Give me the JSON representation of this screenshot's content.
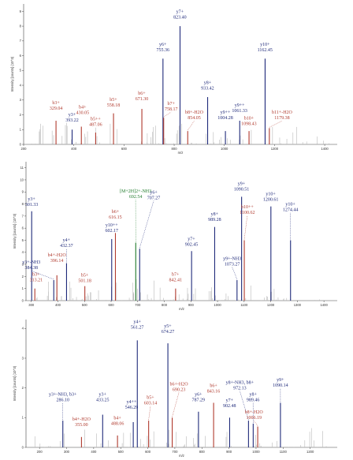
{
  "colors": {
    "b": "#b03a2e",
    "y": "#1f2a7a",
    "g": "#1e7a2a",
    "noise": "#b9b9b9",
    "axis": "#444444"
  },
  "chart_data": [
    {
      "type": "bar",
      "xlabel": "m/z",
      "ylabel": "Intensity [counts] (10^3)",
      "xlim": [
        200,
        1450
      ],
      "ylim": [
        0,
        9.5
      ],
      "xticks": [
        "200",
        "400",
        "600",
        "800",
        "1000",
        "1200",
        "1400"
      ],
      "yticks": [
        "0",
        "1",
        "2",
        "3",
        "4",
        "5",
        "6",
        "7",
        "8",
        "9"
      ],
      "peaks": [
        {
          "mz": 329.04,
          "h": 1.6,
          "c": "b",
          "label": "b3+",
          "value": "329.04",
          "lx": 329,
          "ly": 2.35
        },
        {
          "mz": 393.22,
          "h": 1.0,
          "c": "y",
          "label": "y3+",
          "value": "393.22",
          "lx": 393,
          "ly": 1.55
        },
        {
          "mz": 430.05,
          "h": 1.2,
          "c": "b",
          "label": "b4+",
          "value": "430.05",
          "lx": 435,
          "ly": 2.05
        },
        {
          "mz": 487.06,
          "h": 0.8,
          "c": "b",
          "label": "b5++",
          "value": "487.06",
          "lx": 487,
          "ly": 1.25
        },
        {
          "mz": 558.18,
          "h": 2.1,
          "c": "b",
          "label": "b5+",
          "value": "558.18",
          "lx": 558,
          "ly": 2.55
        },
        {
          "mz": 671.3,
          "h": 2.4,
          "c": "b",
          "label": "b6+",
          "value": "671.30",
          "lx": 671,
          "ly": 3.0
        },
        {
          "mz": 755.36,
          "h": 5.8,
          "c": "y",
          "label": "y6+",
          "value": "755.36",
          "lx": 755,
          "ly": 6.3
        },
        {
          "mz": 758.17,
          "h": 1.8,
          "c": "b",
          "label": "b7+",
          "value": "758.17",
          "lx": 788,
          "ly": 2.3
        },
        {
          "mz": 823.4,
          "h": 8.0,
          "c": "y",
          "label": "y7+",
          "value": "823.40",
          "lx": 823,
          "ly": 8.5
        },
        {
          "mz": 854.05,
          "h": 0.9,
          "c": "b",
          "label": "b8+-H2O",
          "value": "854.05",
          "lx": 880,
          "ly": 1.7
        },
        {
          "mz": 933.42,
          "h": 3.2,
          "c": "y",
          "label": "y8+",
          "value": "933.42",
          "lx": 933,
          "ly": 3.7
        },
        {
          "mz": 1004.28,
          "h": 0.9,
          "c": "y",
          "label": "y9++",
          "value": "1004.28",
          "lx": 1004,
          "ly": 1.7
        },
        {
          "mz": 1061.33,
          "h": 1.6,
          "c": "y",
          "label": "y9++",
          "value": "1061.33",
          "lx": 1061,
          "ly": 2.2
        },
        {
          "mz": 1098.43,
          "h": 0.9,
          "c": "b",
          "label": "b10+",
          "value": "1098.43",
          "lx": 1098,
          "ly": 1.3
        },
        {
          "mz": 1162.45,
          "h": 5.8,
          "c": "y",
          "label": "y10+",
          "value": "1162.45",
          "lx": 1162,
          "ly": 6.3
        },
        {
          "mz": 1179.38,
          "h": 1.1,
          "c": "b",
          "label": "b11+-H2O",
          "value": "1179.38",
          "lx": 1230,
          "ly": 1.7
        }
      ]
    },
    {
      "type": "bar",
      "xlabel": "m/z",
      "ylabel": "Intensity [counts] (10^3)",
      "xlim": [
        280,
        1450
      ],
      "ylim": [
        0,
        11.5
      ],
      "xticks": [
        "300",
        "400",
        "500",
        "600",
        "700",
        "800",
        "900",
        "1000",
        "1100",
        "1200",
        "1300",
        "1400"
      ],
      "yticks": [
        "0",
        "1",
        "2",
        "3",
        "4",
        "5",
        "6",
        "7",
        "8",
        "9",
        "10",
        "11"
      ],
      "peaks": [
        {
          "mz": 301.33,
          "h": 7.4,
          "c": "y",
          "label": "y3+",
          "value": "301.33",
          "lx": 301,
          "ly": 7.85
        },
        {
          "mz": 313.21,
          "h": 1.0,
          "c": "b",
          "label": "b3+",
          "value": "313.21",
          "lx": 318,
          "ly": 1.6
        },
        {
          "mz": 384.38,
          "h": 1.7,
          "c": "y",
          "label": "y3+-NH3",
          "value": "384.38",
          "lx": 300,
          "ly": 2.6
        },
        {
          "mz": 396.14,
          "h": 2.1,
          "c": "b",
          "label": "b4+-H2O",
          "value": "396.14",
          "lx": 396,
          "ly": 3.2
        },
        {
          "mz": 432.37,
          "h": 3.1,
          "c": "y",
          "label": "y4+",
          "value": "432.37",
          "lx": 432,
          "ly": 4.45
        },
        {
          "mz": 501.18,
          "h": 1.2,
          "c": "b",
          "label": "b5+",
          "value": "501.18",
          "lx": 501,
          "ly": 1.55
        },
        {
          "mz": 602.17,
          "h": 5.1,
          "c": "y",
          "label": "y10++",
          "value": "602.17",
          "lx": 602,
          "ly": 5.7
        },
        {
          "mz": 616.15,
          "h": 5.6,
          "c": "b",
          "label": "b6+",
          "value": "616.15",
          "lx": 616,
          "ly": 6.8
        },
        {
          "mz": 692.54,
          "h": 4.8,
          "c": "g",
          "label": "[M+2H]2+-NH3",
          "value": "692.54",
          "lx": 692,
          "ly": 8.5
        },
        {
          "mz": 707.27,
          "h": 4.3,
          "c": "y",
          "label": "y6+",
          "value": "707.27",
          "lx": 760,
          "ly": 8.4
        },
        {
          "mz": 842.41,
          "h": 1.0,
          "c": "b",
          "label": "b7+",
          "value": "842.41",
          "lx": 842,
          "ly": 1.6
        },
        {
          "mz": 902.45,
          "h": 4.1,
          "c": "y",
          "label": "y7+",
          "value": "902.45",
          "lx": 902,
          "ly": 4.55
        },
        {
          "mz": 989.28,
          "h": 6.1,
          "c": "y",
          "label": "y8+",
          "value": "989.28",
          "lx": 989,
          "ly": 6.6
        },
        {
          "mz": 1073.27,
          "h": 1.7,
          "c": "y",
          "label": "y9+-NH3",
          "value": "1073.27",
          "lx": 1055,
          "ly": 2.9
        },
        {
          "mz": 1090.51,
          "h": 8.6,
          "c": "y",
          "label": "y9+",
          "value": "1090.51",
          "lx": 1090,
          "ly": 9.1
        },
        {
          "mz": 1100.62,
          "h": 5.0,
          "c": "b",
          "label": "b10++",
          "value": "1100.62",
          "lx": 1112,
          "ly": 7.2
        },
        {
          "mz": 1200.61,
          "h": 7.8,
          "c": "y",
          "label": "y10+",
          "value": "1200.61",
          "lx": 1200,
          "ly": 8.25
        },
        {
          "mz": 1274.44,
          "h": 5.0,
          "c": "y",
          "label": "y10+",
          "value": "1274.44",
          "lx": 1274,
          "ly": 7.4
        }
      ]
    },
    {
      "type": "bar",
      "xlabel": "m/z",
      "ylabel": "Intensity [counts] (10^3)",
      "xlim": [
        150,
        1300
      ],
      "ylim": [
        0,
        4.3
      ],
      "xticks": [
        "200",
        "300",
        "400",
        "500",
        "600",
        "700",
        "800",
        "900",
        "1000",
        "1100",
        "1200"
      ],
      "yticks": [
        "0",
        "1",
        "2",
        "3",
        "4"
      ],
      "peaks": [
        {
          "mz": 286.1,
          "h": 0.9,
          "c": "y",
          "label": "y3+-NH3, b3+",
          "value": "286.10",
          "lx": 286,
          "ly": 1.55
        },
        {
          "mz": 355.0,
          "h": 0.35,
          "c": "b",
          "label": "b4+-H2O",
          "value": "355.00",
          "lx": 355,
          "ly": 0.72
        },
        {
          "mz": 433.25,
          "h": 1.1,
          "c": "y",
          "label": "y3+",
          "value": "433.25",
          "lx": 433,
          "ly": 1.55
        },
        {
          "mz": 488.06,
          "h": 0.4,
          "c": "b",
          "label": "b4+",
          "value": "488.06",
          "lx": 488,
          "ly": 0.75
        },
        {
          "mz": 546.29,
          "h": 0.85,
          "c": "y",
          "label": "y4++",
          "value": "546.29",
          "lx": 540,
          "ly": 1.3
        },
        {
          "mz": 561.27,
          "h": 3.6,
          "c": "y",
          "label": "y4+",
          "value": "561.27",
          "lx": 561,
          "ly": 4.0
        },
        {
          "mz": 603.14,
          "h": 0.9,
          "c": "b",
          "label": "b5+",
          "value": "603.14",
          "lx": 610,
          "ly": 1.45
        },
        {
          "mz": 674.27,
          "h": 3.5,
          "c": "y",
          "label": "y5+",
          "value": "674.27",
          "lx": 674,
          "ly": 3.85
        },
        {
          "mz": 690.23,
          "h": 1.0,
          "c": "b",
          "label": "b6+-H2O",
          "value": "690.23",
          "lx": 715,
          "ly": 1.9
        },
        {
          "mz": 787.29,
          "h": 1.2,
          "c": "y",
          "label": "y6+",
          "value": "787.29",
          "lx": 787,
          "ly": 1.55
        },
        {
          "mz": 843.16,
          "h": 1.5,
          "c": "b",
          "label": "b6+",
          "value": "843.16",
          "lx": 843,
          "ly": 1.85
        },
        {
          "mz": 902.48,
          "h": 1.0,
          "c": "y",
          "label": "y7+",
          "value": "902.48",
          "lx": 902,
          "ly": 1.35
        },
        {
          "mz": 972.13,
          "h": 0.9,
          "c": "y",
          "label": "y8+-NH3, b8+",
          "value": "972.13",
          "lx": 940,
          "ly": 1.95
        },
        {
          "mz": 989.46,
          "h": 0.8,
          "c": "y",
          "label": "y8+",
          "value": "989.46",
          "lx": 989,
          "ly": 1.55
        },
        {
          "mz": 1006.19,
          "h": 0.7,
          "c": "b",
          "label": "b8+-H2O",
          "value": "1006.19",
          "lx": 992,
          "ly": 0.95
        },
        {
          "mz": 1090.14,
          "h": 1.5,
          "c": "y",
          "label": "y9+",
          "value": "1090.14",
          "lx": 1090,
          "ly": 2.05
        }
      ]
    }
  ]
}
